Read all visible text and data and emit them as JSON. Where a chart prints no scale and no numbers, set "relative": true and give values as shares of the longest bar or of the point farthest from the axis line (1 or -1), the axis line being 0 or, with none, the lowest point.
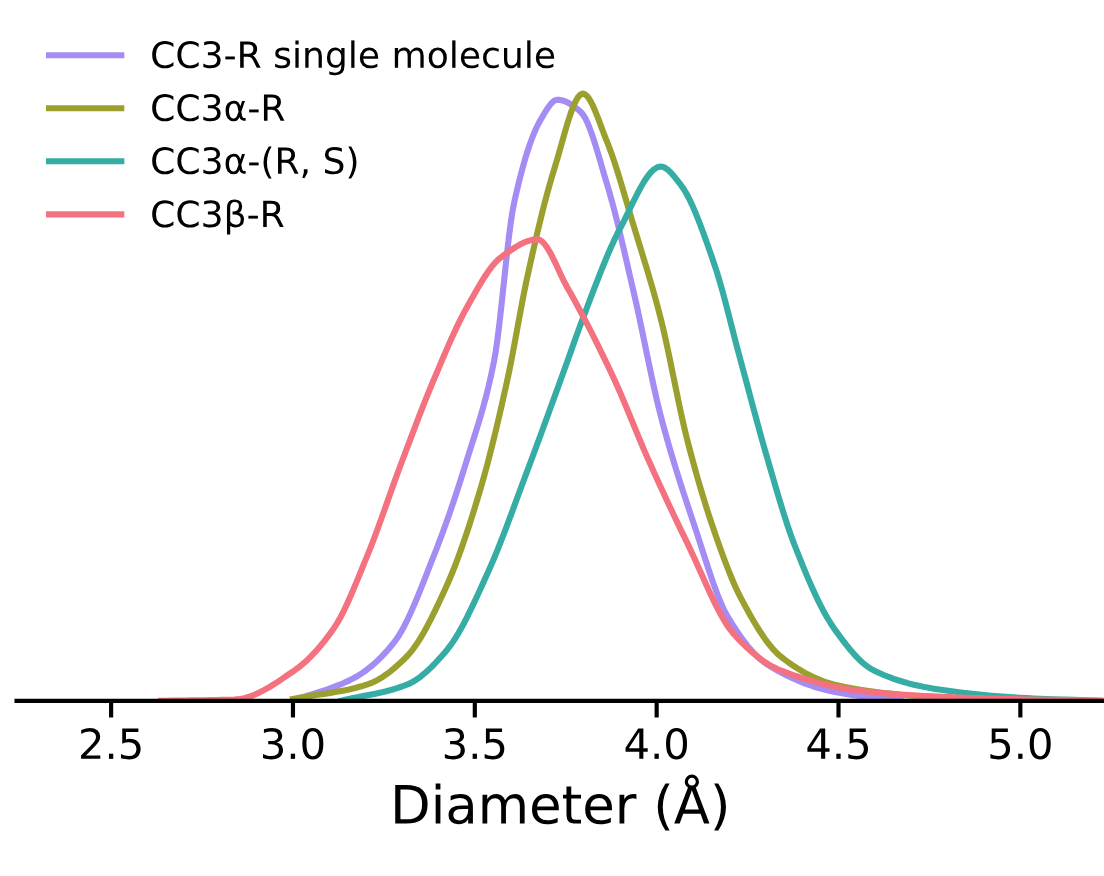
{
  "chart_data": {
    "type": "line",
    "relative": true,
    "xlabel": "Diameter (Å)",
    "xlim": [
      2.24,
      5.23
    ],
    "xticks": [
      2.5,
      {
        "value": 3,
        "label": "3.0"
      },
      3.5,
      {
        "value": 4,
        "label": "4.0"
      },
      4.5,
      {
        "value": 5,
        "label": "5.0"
      }
    ],
    "legend": "top left",
    "grid": false,
    "marker": "none",
    "line_style": "solid",
    "tick_labels": "x",
    "series": [
      {
        "name": "CC3-R single molecule",
        "color": "#a48cf4",
        "x": [
          3.0,
          3.169,
          3.279,
          3.388,
          3.48,
          3.553,
          3.608,
          3.681,
          3.727,
          3.791,
          3.864,
          3.938,
          4.011,
          4.103,
          4.194,
          4.304,
          4.487,
          4.67
        ],
        "values": [
          0,
          0.038,
          0.097,
          0.24,
          0.4,
          0.56,
          0.82,
          0.957,
          0.99,
          0.97,
          0.85,
          0.67,
          0.47,
          0.29,
          0.14,
          0.06,
          0.015,
          0
        ]
      },
      {
        "name": "CC3α-R",
        "color": "#9a9f2e",
        "x": [
          3.0,
          3.205,
          3.313,
          3.423,
          3.516,
          3.59,
          3.645,
          3.718,
          3.797,
          3.864,
          3.938,
          4.011,
          4.084,
          4.158,
          4.231,
          4.341,
          4.487,
          4.67,
          4.945
        ],
        "values": [
          0.003,
          0.027,
          0.073,
          0.19,
          0.35,
          0.53,
          0.7,
          0.875,
          1,
          0.92,
          0.78,
          0.63,
          0.43,
          0.28,
          0.17,
          0.073,
          0.027,
          0.01,
          0
        ]
      },
      {
        "name": "CC3α-(R, S)",
        "color": "#36ada4",
        "x": [
          3.132,
          3.315,
          3.425,
          3.535,
          3.645,
          3.755,
          3.791,
          3.901,
          4.011,
          4.066,
          4.158,
          4.231,
          4.304,
          4.377,
          4.487,
          4.597,
          4.762,
          5.0,
          5.22
        ],
        "values": [
          0,
          0.027,
          0.085,
          0.21,
          0.38,
          0.56,
          0.62,
          0.78,
          0.88,
          0.85,
          0.72,
          0.56,
          0.4,
          0.26,
          0.12,
          0.05,
          0.02,
          0.005,
          0
        ]
      },
      {
        "name": "CC3β-R",
        "color": "#f4727f",
        "x": [
          2.637,
          2.839,
          3.004,
          3.113,
          3.205,
          3.297,
          3.388,
          3.48,
          3.571,
          3.672,
          3.755,
          3.883,
          3.975,
          4.084,
          4.212,
          4.341,
          4.579,
          4.85,
          5.22
        ],
        "values": [
          0,
          0.002,
          0.05,
          0.12,
          0.24,
          0.39,
          0.53,
          0.65,
          0.73,
          0.76,
          0.68,
          0.53,
          0.4,
          0.26,
          0.11,
          0.05,
          0.015,
          0.005,
          0
        ]
      }
    ]
  }
}
